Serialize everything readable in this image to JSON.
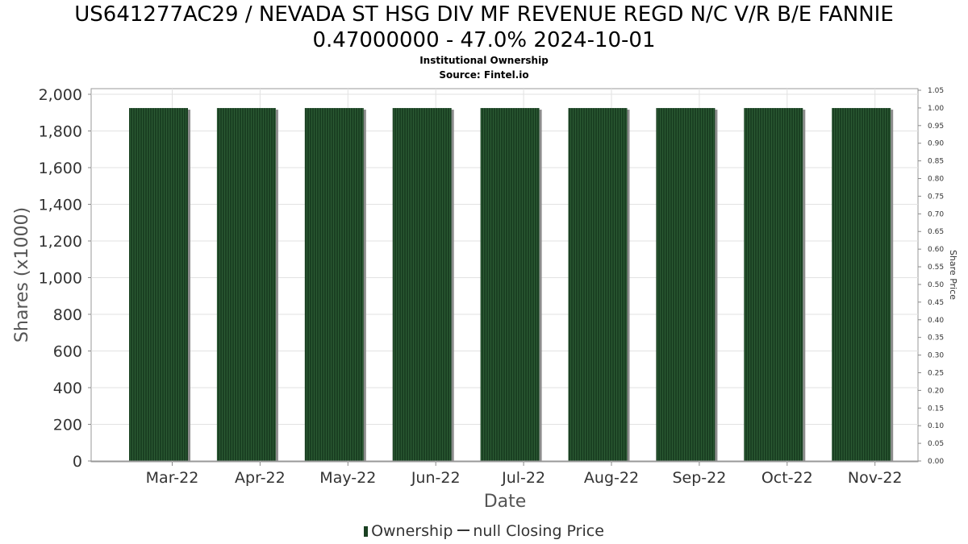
{
  "chart_data": {
    "type": "bar",
    "title_lines": [
      "US641277AC29 / NEVADA ST HSG DIV MF REVENUE REGD N/C V/R B/E FANNIE",
      "0.47000000 - 47.0% 2024-10-01"
    ],
    "subtitle": "Institutional Ownership",
    "source": "Source: Fintel.io",
    "categories": [
      "Mar-22",
      "Apr-22",
      "May-22",
      "Jun-22",
      "Jul-22",
      "Aug-22",
      "Sep-22",
      "Oct-22",
      "Nov-22"
    ],
    "series": [
      {
        "name": "Ownership",
        "values": [
          1925,
          1925,
          1925,
          1925,
          1925,
          1925,
          1925,
          1925,
          1925
        ],
        "color": "#1a4022"
      }
    ],
    "xlabel": "Date",
    "ylabel": "Shares (x1000)",
    "y2label": "Share Price",
    "ylim": [
      0,
      2000
    ],
    "yticks": [
      "0",
      "200",
      "400",
      "600",
      "800",
      "1,000",
      "1,200",
      "1,400",
      "1,600",
      "1,800",
      "2,000"
    ],
    "y2lim": [
      0,
      1.05
    ],
    "y2ticks": [
      "0.00",
      "0.05",
      "0.10",
      "0.15",
      "0.20",
      "0.25",
      "0.30",
      "0.35",
      "0.40",
      "0.45",
      "0.50",
      "0.55",
      "0.60",
      "0.65",
      "0.70",
      "0.75",
      "0.80",
      "0.85",
      "0.90",
      "0.95",
      "1.00",
      "1.05"
    ],
    "grid": true,
    "legend": {
      "position": "bottom",
      "items": [
        "Ownership",
        "null Closing Price"
      ]
    }
  }
}
